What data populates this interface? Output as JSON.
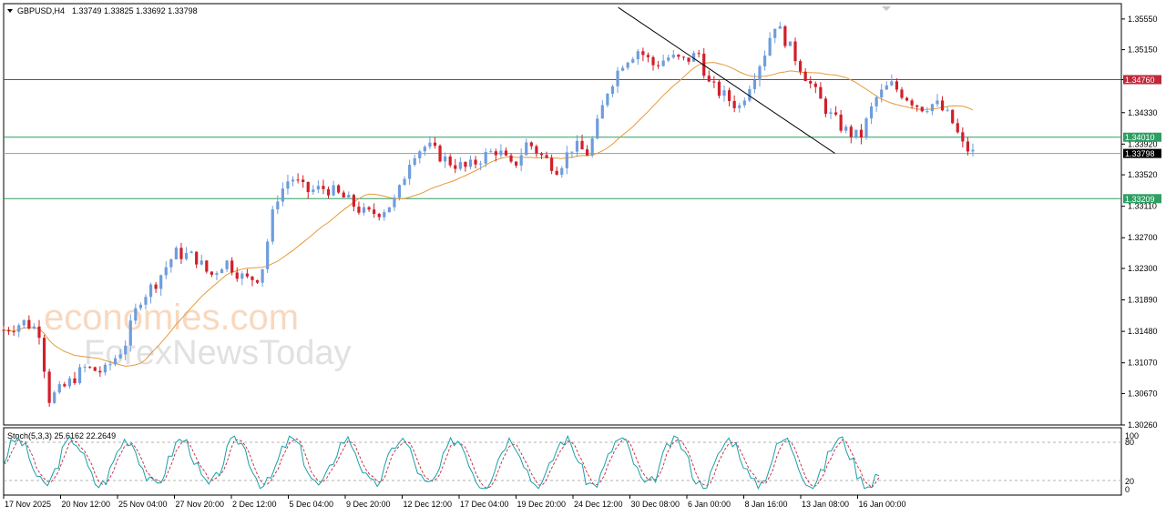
{
  "header": {
    "symbol_tf": "GBPUSD,H4",
    "ohlc": "1.33749 1.33825 1.33692 1.33798"
  },
  "watermark": {
    "line1": "economies.com",
    "line2": "ForexNewsToday"
  },
  "colors": {
    "bull": "#6e9ddc",
    "bear": "#d11f2a",
    "ma": "#e59a3c",
    "resistance": "#c0283a",
    "support": "#2e9e62",
    "current": "#9a9a9a",
    "trend": "#000000",
    "stoch_main": "#1aa0a8",
    "stoch_signal": "#c0283a"
  },
  "chart_data": {
    "type": "candlestick",
    "symbol": "GBPUSD",
    "timeframe": "H4",
    "ylim": [
      1.3026,
      1.3575
    ],
    "y_ticks": [
      "1.35550",
      "1.35150",
      "1.34760",
      "1.34330",
      "1.33920",
      "1.33520",
      "1.33110",
      "1.32700",
      "1.32300",
      "1.31890",
      "1.31480",
      "1.31070",
      "1.30670",
      "1.30260"
    ],
    "x_ticks": [
      "17 Nov 2025",
      "20 Nov 12:00",
      "25 Nov 04:00",
      "27 Nov 20:00",
      "2 Dec 12:00",
      "5 Dec 04:00",
      "9 Dec 20:00",
      "12 Dec 12:00",
      "17 Dec 04:00",
      "19 Dec 20:00",
      "24 Dec 12:00",
      "30 Dec 08:00",
      "6 Jan 00:00",
      "8 Jan 16:00",
      "13 Jan 08:00",
      "16 Jan 00:00"
    ],
    "levels": [
      {
        "value": 1.3476,
        "label": "1.34760",
        "kind": "resistance"
      },
      {
        "value": 1.3401,
        "label": "1.34010",
        "kind": "support"
      },
      {
        "value": 1.33798,
        "label": "1.33798",
        "kind": "current"
      },
      {
        "value": 1.33209,
        "label": "1.33209",
        "kind": "support"
      }
    ],
    "trendline": [
      [
        0.61,
        1.357
      ],
      [
        0.825,
        1.338
      ]
    ],
    "price_keys": [
      [
        0.0,
        1.315
      ],
      [
        0.02,
        1.316
      ],
      [
        0.035,
        1.315
      ],
      [
        0.045,
        1.306
      ],
      [
        0.06,
        1.3075
      ],
      [
        0.08,
        1.31
      ],
      [
        0.1,
        1.3095
      ],
      [
        0.12,
        1.313
      ],
      [
        0.135,
        1.319
      ],
      [
        0.15,
        1.321
      ],
      [
        0.17,
        1.325
      ],
      [
        0.19,
        1.3245
      ],
      [
        0.205,
        1.322
      ],
      [
        0.22,
        1.324
      ],
      [
        0.24,
        1.3215
      ],
      [
        0.255,
        1.322
      ],
      [
        0.27,
        1.332
      ],
      [
        0.285,
        1.335
      ],
      [
        0.3,
        1.333
      ],
      [
        0.32,
        1.3335
      ],
      [
        0.34,
        1.332
      ],
      [
        0.36,
        1.33
      ],
      [
        0.375,
        1.3305
      ],
      [
        0.39,
        1.332
      ],
      [
        0.405,
        1.338
      ],
      [
        0.42,
        1.339
      ],
      [
        0.44,
        1.337
      ],
      [
        0.46,
        1.336
      ],
      [
        0.475,
        1.3375
      ],
      [
        0.49,
        1.3385
      ],
      [
        0.505,
        1.336
      ],
      [
        0.52,
        1.3395
      ],
      [
        0.535,
        1.3375
      ],
      [
        0.55,
        1.336
      ],
      [
        0.565,
        1.339
      ],
      [
        0.58,
        1.338
      ],
      [
        0.59,
        1.342
      ],
      [
        0.6,
        1.3465
      ],
      [
        0.615,
        1.35
      ],
      [
        0.63,
        1.3515
      ],
      [
        0.645,
        1.3495
      ],
      [
        0.66,
        1.3505
      ],
      [
        0.675,
        1.35
      ],
      [
        0.69,
        1.351
      ],
      [
        0.7,
        1.347
      ],
      [
        0.715,
        1.3455
      ],
      [
        0.73,
        1.344
      ],
      [
        0.74,
        1.347
      ],
      [
        0.755,
        1.351
      ],
      [
        0.765,
        1.355
      ],
      [
        0.775,
        1.353
      ],
      [
        0.79,
        1.3495
      ],
      [
        0.805,
        1.346
      ],
      [
        0.82,
        1.343
      ],
      [
        0.835,
        1.341
      ],
      [
        0.85,
        1.34
      ],
      [
        0.865,
        1.345
      ],
      [
        0.88,
        1.347
      ],
      [
        0.895,
        1.3455
      ],
      [
        0.91,
        1.344
      ],
      [
        0.925,
        1.3445
      ],
      [
        0.94,
        1.3425
      ],
      [
        0.952,
        1.339
      ],
      [
        0.962,
        1.338
      ]
    ],
    "stochastic": {
      "label": "Stoch(5,3,3)",
      "main": 25.6162,
      "signal": 22.2649,
      "levels_label": [
        "100",
        "80",
        "20",
        "0"
      ],
      "levels": [
        100,
        80,
        20,
        0
      ]
    }
  },
  "stoch_text": {
    "title": "Stoch(5,3,3) 25.6162 22.2649",
    "l100": "100",
    "l80": "80",
    "l20": "20",
    "l0": "0"
  }
}
